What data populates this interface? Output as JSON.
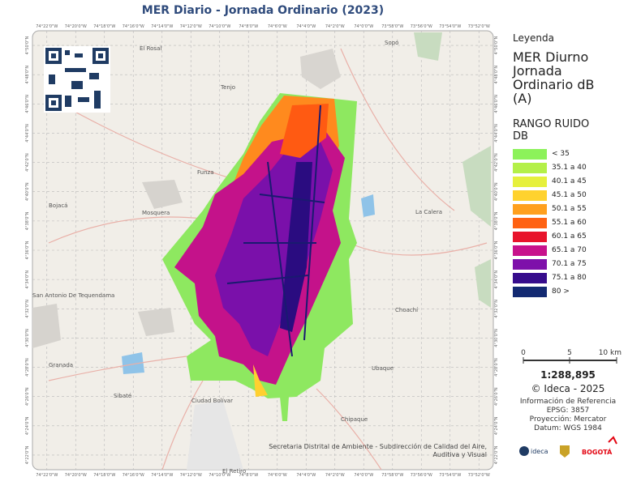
{
  "title": "MER Diario - Jornada Ordinario (2023)",
  "map": {
    "coord_top": [
      "74°22'0\"W",
      "74°20'0\"W",
      "74°18'0\"W",
      "74°16'0\"W",
      "74°14'0\"W",
      "74°12'0\"W",
      "74°10'0\"W",
      "74°8'0\"W",
      "74°6'0\"W",
      "74°4'0\"W",
      "74°2'0\"W",
      "74°0'0\"W",
      "73°58'0\"W",
      "73°56'0\"W",
      "73°54'0\"W",
      "73°52'0\"W"
    ],
    "coord_left": [
      "4°50'0\"N",
      "4°48'0\"N",
      "4°46'0\"N",
      "4°44'0\"N",
      "4°42'0\"N",
      "4°40'0\"N",
      "4°38'0\"N",
      "4°36'0\"N",
      "4°34'0\"N",
      "4°32'0\"N",
      "4°30'0\"N",
      "4°28'0\"N",
      "4°26'0\"N",
      "4°24'0\"N",
      "4°22'0\"N"
    ],
    "places": [
      "El Rosal",
      "Tenjo",
      "Sopó",
      "Funza",
      "Mosquera",
      "Bojacá",
      "La Calera",
      "San Antonio De Tequendama",
      "Choachí",
      "Ubaque",
      "Granada",
      "Sibaté",
      "Chipaque",
      "Ciudad Bolívar",
      "El Retiro"
    ],
    "credit": "Secretaria Distrital de Ambiente - Subdirección de Calidad del Aire, Auditiva y Visual"
  },
  "legend": {
    "heading": "Leyenda",
    "layer": "MER Diurno Jornada Ordinario dB (A)",
    "range_title": "RANGO RUIDO DB",
    "items": [
      {
        "label": "< 35",
        "color": "#8cf25a"
      },
      {
        "label": "35.1 a 40",
        "color": "#b4f048"
      },
      {
        "label": "40.1 a 45",
        "color": "#e6f03c"
      },
      {
        "label": "45.1 a 50",
        "color": "#ffd22e"
      },
      {
        "label": "50.1 a 55",
        "color": "#ffa01e"
      },
      {
        "label": "55.1 a 60",
        "color": "#ff6212"
      },
      {
        "label": "60.1 a 65",
        "color": "#e8142c"
      },
      {
        "label": "65.1 a 70",
        "color": "#c8128c"
      },
      {
        "label": "70.1 a 75",
        "color": "#7e10aa"
      },
      {
        "label": "75.1 a 80",
        "color": "#360c8c"
      },
      {
        "label": "80 >",
        "color": "#132a72"
      }
    ]
  },
  "scale": {
    "labels": [
      "0",
      "5",
      "10 km"
    ],
    "ratio": "1:288,895"
  },
  "copyright": "© Ideca - 2025",
  "reference": {
    "title": "Información de Referencia",
    "lines": [
      "EPSG: 3857",
      "Proyección: Mercator",
      "Datum: WGS 1984"
    ]
  },
  "logos": [
    "ideca",
    "BOGOTÁ"
  ]
}
